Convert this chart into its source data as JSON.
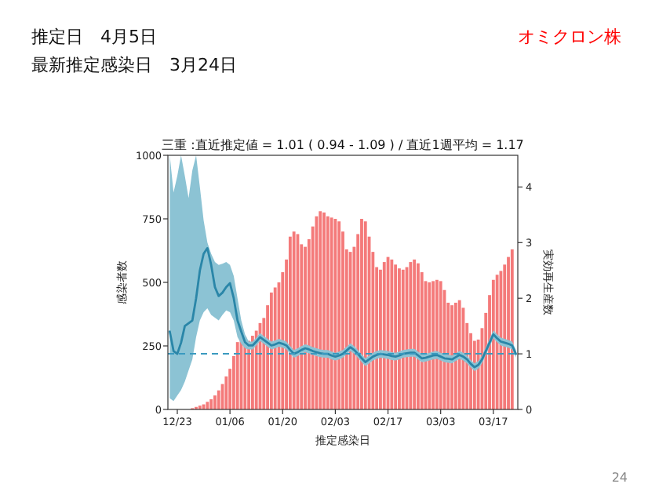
{
  "chart_data": {
    "type": "bar",
    "title": "三重 :直近推定値 = 1.01 ( 0.94 - 1.09 ) / 直近1週平均 = 1.17",
    "xlabel": "推定感染日",
    "ylabel": "感染者数",
    "y2label": "実効再生産数",
    "annotations": [
      "推定日　4月5日",
      "最新推定感染日　3月24日",
      "オミクロン株",
      "24"
    ],
    "categories": [
      null,
      null,
      "12/23",
      null,
      null,
      null,
      null,
      null,
      null,
      null,
      null,
      null,
      null,
      null,
      null,
      null,
      "01/06",
      null,
      null,
      null,
      null,
      null,
      null,
      null,
      null,
      null,
      null,
      null,
      null,
      null,
      "01/20",
      null,
      null,
      null,
      null,
      null,
      null,
      null,
      null,
      null,
      null,
      null,
      null,
      null,
      "02/03",
      null,
      null,
      null,
      null,
      null,
      null,
      null,
      null,
      null,
      null,
      null,
      null,
      null,
      "02/17",
      null,
      null,
      null,
      null,
      null,
      null,
      null,
      null,
      null,
      null,
      null,
      null,
      null,
      "03/03",
      null,
      null,
      null,
      null,
      null,
      null,
      null,
      null,
      null,
      null,
      null,
      null,
      null,
      "03/17",
      null,
      null,
      null,
      null,
      null,
      null
    ],
    "ylim": [
      0,
      1000
    ],
    "yticks": [
      0,
      250,
      500,
      750,
      1000
    ],
    "y2lim": [
      0,
      4.57
    ],
    "y2ticks": [
      0,
      1,
      2,
      3,
      4
    ],
    "grid": false,
    "ref_lines": [
      {
        "axis": "y2",
        "value": 1,
        "color": "#3a9ac0",
        "line_style": "dashed"
      }
    ],
    "series": [
      {
        "color": "#f47a7a",
        "values": [
          0,
          0,
          0,
          0,
          null,
          null,
          5,
          10,
          15,
          20,
          30,
          40,
          55,
          75,
          100,
          130,
          160,
          210,
          265,
          280,
          285,
          270,
          290,
          310,
          340,
          360,
          410,
          460,
          480,
          500,
          540,
          590,
          680,
          700,
          690,
          650,
          640,
          670,
          720,
          760,
          780,
          775,
          760,
          755,
          750,
          740,
          700,
          630,
          620,
          640,
          690,
          750,
          740,
          680,
          620,
          560,
          550,
          580,
          600,
          590,
          570,
          555,
          550,
          560,
          580,
          590,
          575,
          540,
          505,
          500,
          505,
          510,
          505,
          470,
          420,
          410,
          420,
          430,
          400,
          340,
          300,
          270,
          275,
          320,
          380,
          450,
          510,
          530,
          545,
          570,
          600,
          630,
          null
        ]
      },
      {
        "type": "line",
        "axis": "y2",
        "color": "#2a86a8",
        "values": [
          1.4,
          1.05,
          1.0,
          1.2,
          1.5,
          1.55,
          1.6,
          2.0,
          2.5,
          2.8,
          2.9,
          2.6,
          2.2,
          2.04,
          2.1,
          2.2,
          2.27,
          2.0,
          1.6,
          1.4,
          1.21,
          1.15,
          1.15,
          1.22,
          1.3,
          1.25,
          1.2,
          1.15,
          1.17,
          1.2,
          1.18,
          1.15,
          1.07,
          1.0,
          1.03,
          1.07,
          1.1,
          1.08,
          1.05,
          1.03,
          1.01,
          1.0,
          1.0,
          0.97,
          0.95,
          0.97,
          1.0,
          1.06,
          1.12,
          1.07,
          1.0,
          0.92,
          0.85,
          0.9,
          0.95,
          0.98,
          1.0,
          0.99,
          0.98,
          0.96,
          0.95,
          0.97,
          1.0,
          1.01,
          1.02,
          1.02,
          0.97,
          0.92,
          0.93,
          0.95,
          0.97,
          0.98,
          0.95,
          0.92,
          0.91,
          0.9,
          0.94,
          0.98,
          0.95,
          0.9,
          0.82,
          0.76,
          0.8,
          0.9,
          1.05,
          1.2,
          1.35,
          1.28,
          1.22,
          1.2,
          1.18,
          1.15,
          1.0
        ],
        "upper": [
          4.57,
          3.9,
          4.2,
          4.57,
          4.2,
          3.8,
          4.3,
          4.57,
          4.0,
          3.4,
          3.0,
          2.8,
          2.65,
          2.6,
          2.62,
          2.65,
          2.6,
          2.4,
          2.0,
          1.6,
          1.35,
          1.22,
          1.22,
          1.29,
          1.37,
          1.32,
          1.27,
          1.22,
          1.24,
          1.27,
          1.25,
          1.22,
          1.14,
          1.07,
          1.1,
          1.14,
          1.17,
          1.15,
          1.12,
          1.1,
          1.08,
          1.07,
          1.07,
          1.04,
          1.02,
          1.04,
          1.07,
          1.13,
          1.19,
          1.14,
          1.07,
          0.99,
          0.92,
          0.97,
          1.02,
          1.05,
          1.07,
          1.06,
          1.05,
          1.03,
          1.02,
          1.04,
          1.07,
          1.08,
          1.09,
          1.09,
          1.04,
          0.99,
          1.0,
          1.02,
          1.04,
          1.05,
          1.02,
          0.99,
          0.98,
          0.97,
          1.01,
          1.05,
          1.02,
          0.97,
          0.89,
          0.83,
          0.87,
          0.97,
          1.12,
          1.27,
          1.42,
          1.35,
          1.29,
          1.27,
          1.25,
          1.22,
          1.07
        ],
        "lower": [
          0.2,
          0.15,
          0.25,
          0.35,
          0.5,
          0.7,
          0.9,
          1.3,
          1.6,
          1.75,
          1.82,
          1.7,
          1.65,
          1.6,
          1.7,
          1.78,
          1.75,
          1.6,
          1.3,
          1.18,
          1.1,
          1.08,
          1.08,
          1.15,
          1.23,
          1.18,
          1.13,
          1.08,
          1.1,
          1.13,
          1.11,
          1.08,
          1.0,
          0.93,
          0.96,
          1.0,
          1.03,
          1.01,
          0.98,
          0.96,
          0.94,
          0.93,
          0.93,
          0.9,
          0.88,
          0.9,
          0.93,
          0.99,
          1.05,
          1.0,
          0.93,
          0.85,
          0.78,
          0.83,
          0.88,
          0.91,
          0.93,
          0.92,
          0.91,
          0.89,
          0.88,
          0.9,
          0.93,
          0.94,
          0.95,
          0.95,
          0.9,
          0.85,
          0.86,
          0.88,
          0.9,
          0.91,
          0.88,
          0.85,
          0.84,
          0.83,
          0.87,
          0.91,
          0.88,
          0.83,
          0.75,
          0.69,
          0.73,
          0.83,
          0.98,
          1.13,
          1.28,
          1.21,
          1.15,
          1.13,
          1.11,
          1.08,
          0.93
        ]
      }
    ]
  }
}
